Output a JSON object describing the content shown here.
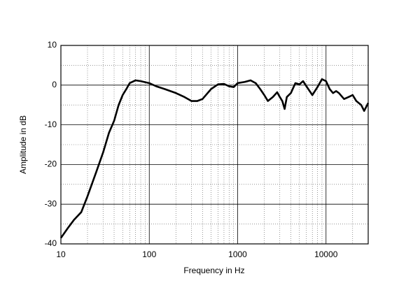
{
  "chart_data": {
    "type": "line",
    "xlabel": "Frequency in Hz",
    "ylabel": "Amplitude in dB",
    "x": [
      10,
      12,
      14,
      17,
      20,
      25,
      30,
      35,
      40,
      45,
      50,
      55,
      60,
      70,
      80,
      100,
      120,
      150,
      200,
      250,
      300,
      350,
      400,
      500,
      600,
      700,
      800,
      900,
      1000,
      1200,
      1400,
      1600,
      1800,
      2000,
      2200,
      2500,
      2800,
      3000,
      3200,
      3400,
      3600,
      4000,
      4500,
      5000,
      5500,
      6000,
      7000,
      8000,
      9000,
      10000,
      11000,
      12000,
      13000,
      14000,
      16000,
      18000,
      20000,
      22000,
      25000,
      27000,
      30000
    ],
    "values": [
      -38.5,
      -36,
      -34,
      -32,
      -28,
      -22,
      -17,
      -12,
      -9,
      -5,
      -2.5,
      -1,
      0.5,
      1.2,
      1,
      0.5,
      -0.3,
      -1,
      -2,
      -3,
      -4,
      -4,
      -3.5,
      -1,
      0.2,
      0.3,
      -0.3,
      -0.5,
      0.5,
      0.8,
      1.2,
      0.5,
      -1,
      -2.5,
      -4,
      -3,
      -1.8,
      -3,
      -4,
      -6,
      -3,
      -2,
      0.5,
      0.2,
      1,
      -0.3,
      -2.5,
      -0.5,
      1.5,
      1,
      -1,
      -2,
      -1.5,
      -2,
      -3.5,
      -3,
      -2.5,
      -4,
      -5,
      -6.5,
      -4.5
    ],
    "color": "#000000",
    "log_x": true,
    "grid": true,
    "xlim": [
      10,
      30000
    ],
    "xticks": [
      10,
      100,
      1000,
      10000
    ],
    "ylim": [
      -40,
      10
    ],
    "yticks": [
      -40,
      -30,
      -20,
      -10,
      0,
      10
    ]
  }
}
